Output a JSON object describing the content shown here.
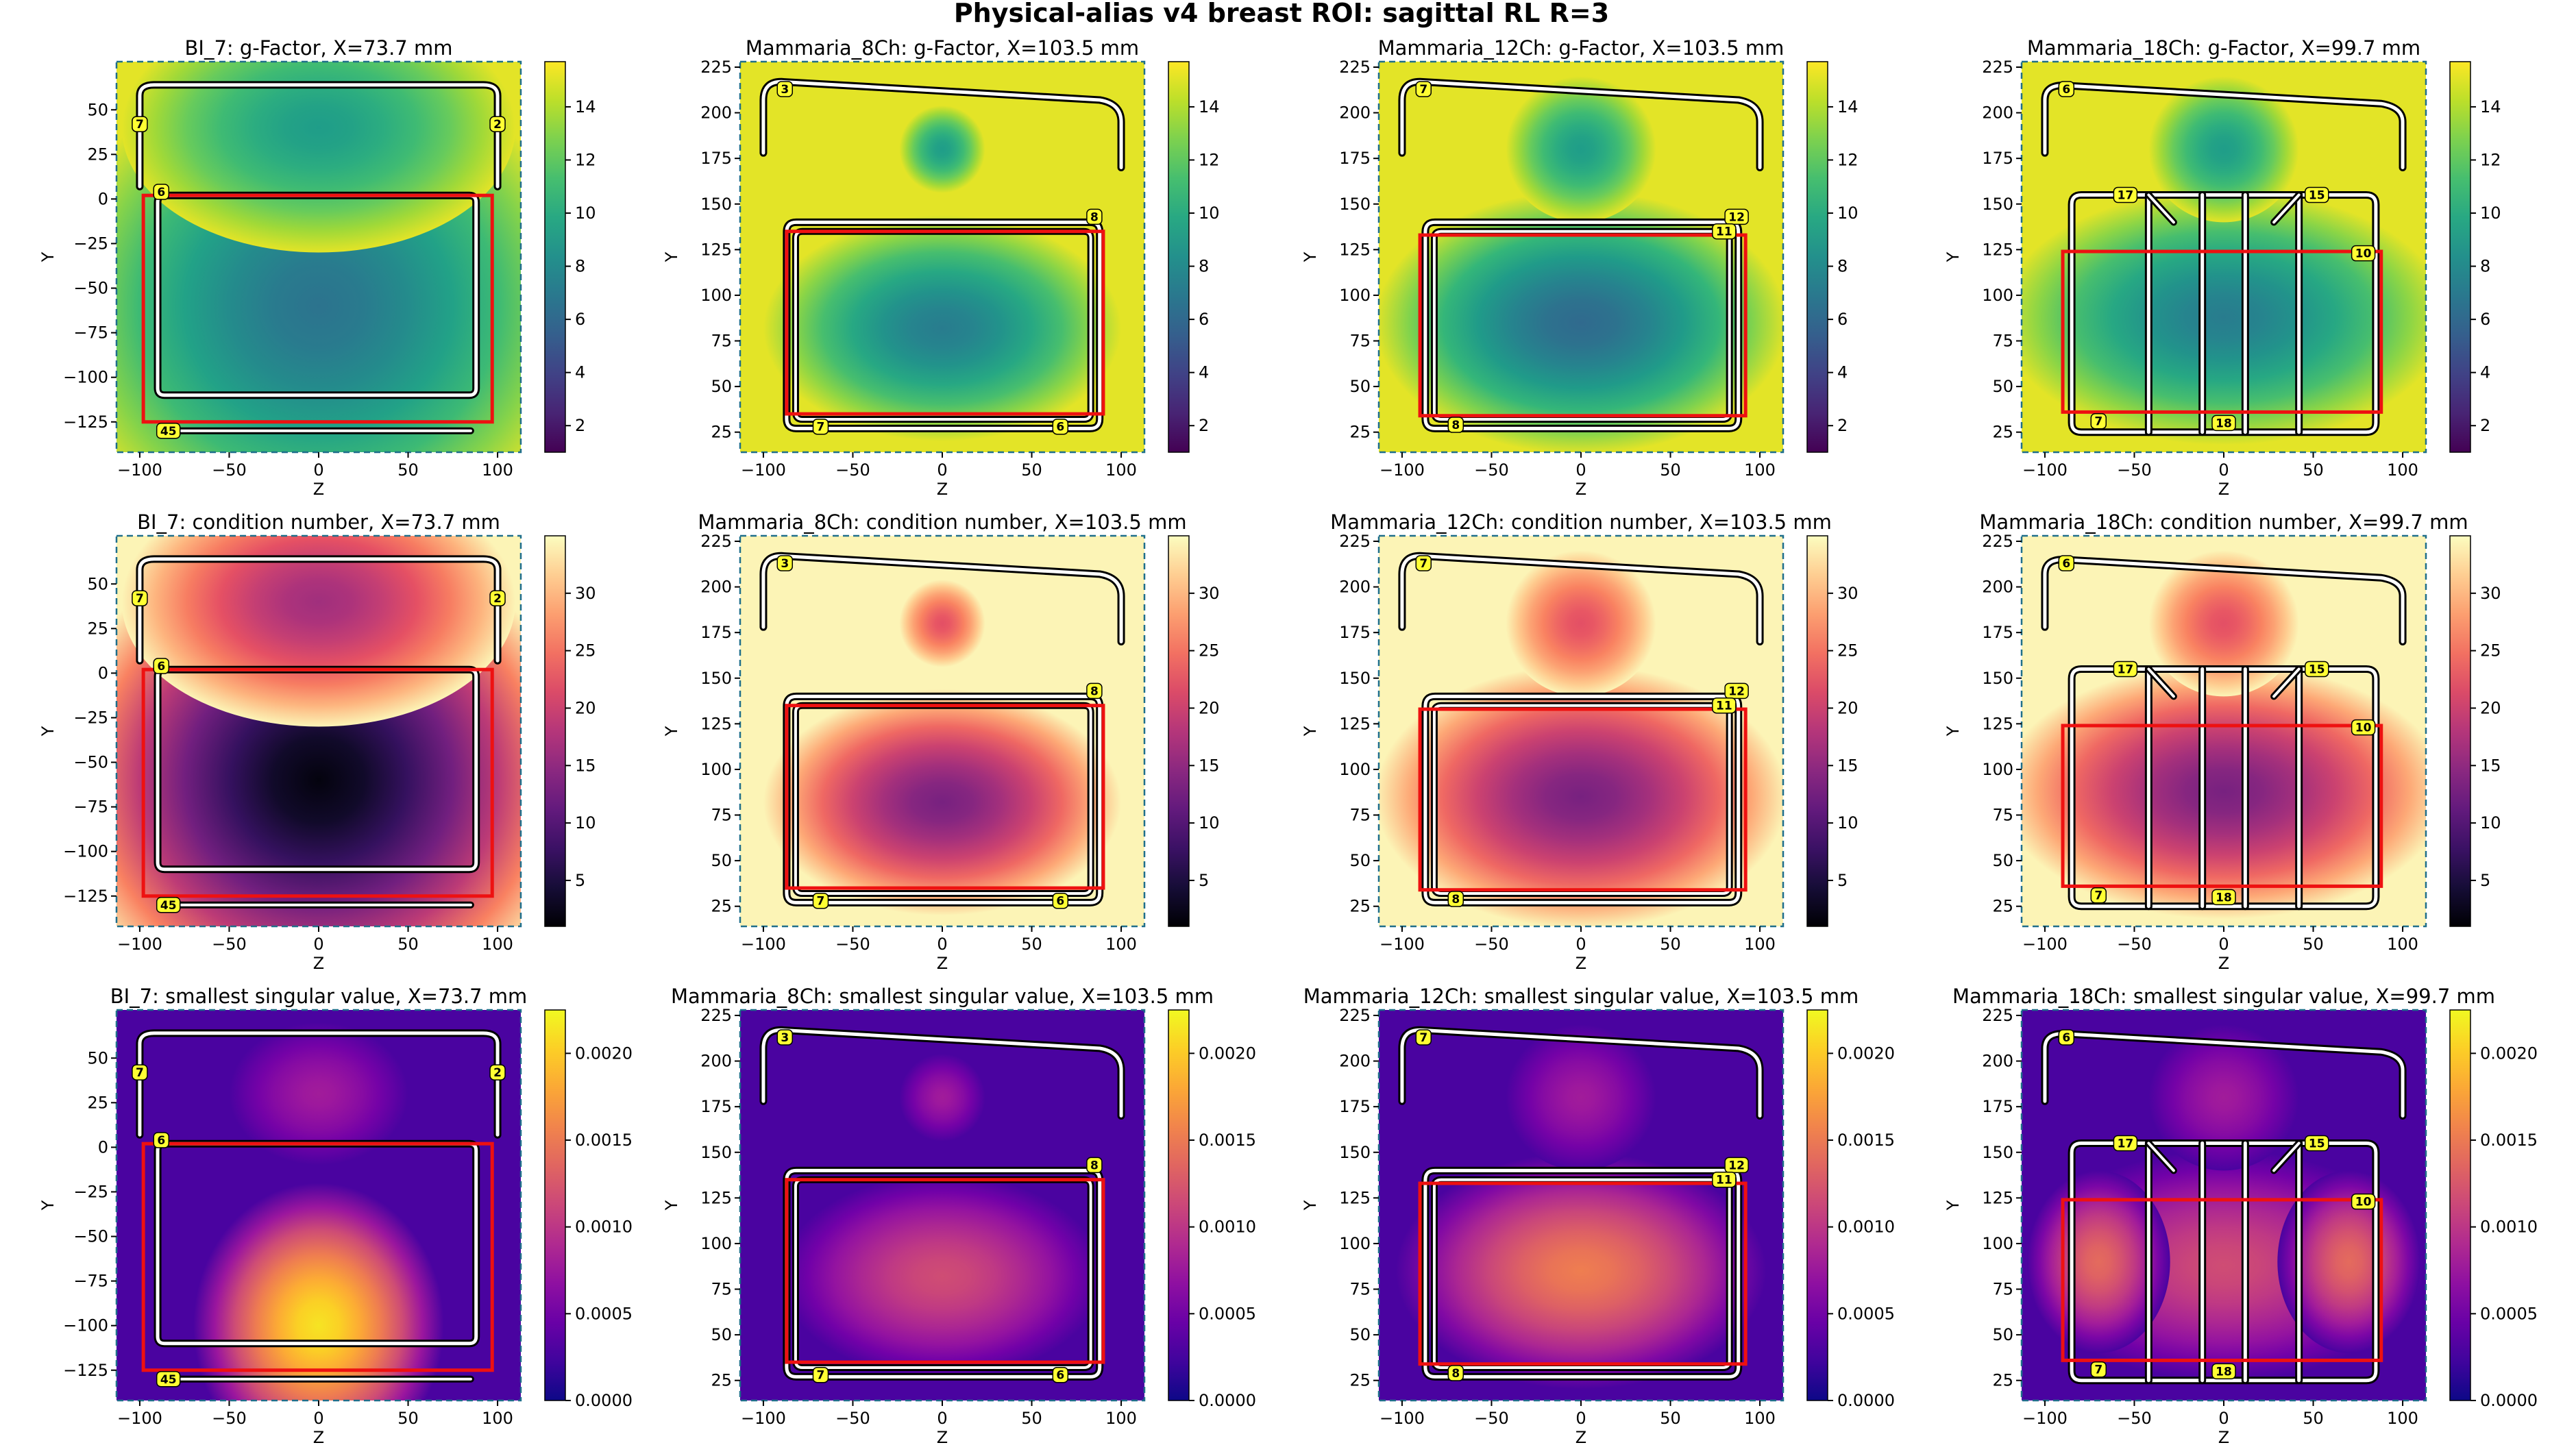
{
  "figure": {
    "title": "Physical-alias v4 breast ROI: sagittal RL R=3"
  },
  "colors": {
    "roi": "#ee1111",
    "label_bg": "#ffff33",
    "frame": "#1f6f8b"
  },
  "columns": [
    {
      "coil": "BI_7",
      "x_mm": "73.7",
      "geometry": "bi7",
      "xlim": [
        -113,
        113
      ],
      "ylim": [
        -142,
        77
      ],
      "xticks": [
        -100,
        -50,
        0,
        50,
        100
      ],
      "yticks": [
        -125,
        -100,
        -75,
        -50,
        -25,
        0,
        25,
        50
      ],
      "roi": {
        "z": [
          -98,
          97
        ],
        "y": [
          -125,
          2
        ]
      },
      "labels": [
        {
          "t": "7",
          "z": -100,
          "y": 42
        },
        {
          "t": "2",
          "z": 100,
          "y": 42
        },
        {
          "t": "6",
          "z": -88,
          "y": 4
        },
        {
          "t": "45",
          "z": -84,
          "y": -130
        }
      ]
    },
    {
      "coil": "Mammaria_8Ch",
      "x_mm": "103.5",
      "geometry": "m8",
      "xlim": [
        -113,
        113
      ],
      "ylim": [
        14,
        228
      ],
      "xticks": [
        -100,
        -50,
        0,
        50,
        100
      ],
      "yticks": [
        25,
        50,
        75,
        100,
        125,
        150,
        175,
        200,
        225
      ],
      "roi": {
        "z": [
          -87,
          90
        ],
        "y": [
          35,
          135
        ]
      },
      "labels": [
        {
          "t": "3",
          "z": -88,
          "y": 213
        },
        {
          "t": "8",
          "z": 85,
          "y": 143
        },
        {
          "t": "7",
          "z": -68,
          "y": 28
        },
        {
          "t": "6",
          "z": 66,
          "y": 28
        }
      ]
    },
    {
      "coil": "Mammaria_12Ch",
      "x_mm": "103.5",
      "geometry": "m12",
      "xlim": [
        -113,
        113
      ],
      "ylim": [
        14,
        228
      ],
      "xticks": [
        -100,
        -50,
        0,
        50,
        100
      ],
      "yticks": [
        25,
        50,
        75,
        100,
        125,
        150,
        175,
        200,
        225
      ],
      "roi": {
        "z": [
          -90,
          92
        ],
        "y": [
          34,
          133
        ]
      },
      "labels": [
        {
          "t": "7",
          "z": -88,
          "y": 213
        },
        {
          "t": "12",
          "z": 87,
          "y": 143
        },
        {
          "t": "11",
          "z": 80,
          "y": 135
        },
        {
          "t": "8",
          "z": -70,
          "y": 29
        }
      ]
    },
    {
      "coil": "Mammaria_18Ch",
      "x_mm": "99.7",
      "geometry": "m18",
      "xlim": [
        -113,
        113
      ],
      "ylim": [
        14,
        228
      ],
      "xticks": [
        -100,
        -50,
        0,
        50,
        100
      ],
      "yticks": [
        25,
        50,
        75,
        100,
        125,
        150,
        175,
        200,
        225
      ],
      "roi": {
        "z": [
          -90,
          88
        ],
        "y": [
          36,
          124
        ]
      },
      "labels": [
        {
          "t": "6",
          "z": -88,
          "y": 213
        },
        {
          "t": "17",
          "z": -55,
          "y": 155
        },
        {
          "t": "15",
          "z": 52,
          "y": 155
        },
        {
          "t": "10",
          "z": 78,
          "y": 123
        },
        {
          "t": "7",
          "z": -70,
          "y": 31
        },
        {
          "t": "18",
          "z": 0,
          "y": 30
        }
      ]
    }
  ],
  "metrics": [
    {
      "key": "gf",
      "title_suffix": "g-Factor",
      "colormap": "viridis",
      "colorbar": {
        "ticks": [
          "2",
          "4",
          "6",
          "8",
          "10",
          "12",
          "14"
        ],
        "tick_values": [
          2,
          4,
          6,
          8,
          10,
          12,
          14
        ],
        "range": [
          1,
          15.7
        ]
      }
    },
    {
      "key": "cond",
      "title_suffix": "condition number",
      "colormap": "magma",
      "colorbar": {
        "ticks": [
          "5",
          "10",
          "15",
          "20",
          "25",
          "30"
        ],
        "tick_values": [
          5,
          10,
          15,
          20,
          25,
          30
        ],
        "range": [
          1,
          35
        ]
      }
    },
    {
      "key": "sv",
      "title_suffix": "smallest singular value",
      "colormap": "plasma",
      "colorbar": {
        "ticks": [
          "0.0000",
          "0.0005",
          "0.0010",
          "0.0015",
          "0.0020"
        ],
        "tick_values": [
          0,
          0.0005,
          0.001,
          0.0015,
          0.002
        ],
        "range": [
          0,
          0.00225
        ]
      }
    }
  ],
  "axis_labels": {
    "x": "Z",
    "y": "Y"
  },
  "chart_data": [
    {
      "type": "heatmap",
      "title": "BI_7: g-Factor, X=73.7 mm",
      "xlabel": "Z",
      "ylabel": "Y",
      "xlim": [
        -113,
        113
      ],
      "ylim": [
        -142,
        77
      ],
      "colorbar_range": [
        1,
        15.7
      ],
      "colormap": "viridis",
      "roi": {
        "z": [
          -98,
          97
        ],
        "y": [
          -125,
          2
        ]
      }
    },
    {
      "type": "heatmap",
      "title": "Mammaria_8Ch: g-Factor, X=103.5 mm",
      "xlabel": "Z",
      "ylabel": "Y",
      "xlim": [
        -113,
        113
      ],
      "ylim": [
        14,
        228
      ],
      "colorbar_range": [
        1,
        15.7
      ],
      "colormap": "viridis",
      "roi": {
        "z": [
          -87,
          90
        ],
        "y": [
          35,
          135
        ]
      }
    },
    {
      "type": "heatmap",
      "title": "Mammaria_12Ch: g-Factor, X=103.5 mm",
      "xlabel": "Z",
      "ylabel": "Y",
      "xlim": [
        -113,
        113
      ],
      "ylim": [
        14,
        228
      ],
      "colorbar_range": [
        1,
        15.7
      ],
      "colormap": "viridis",
      "roi": {
        "z": [
          -90,
          92
        ],
        "y": [
          34,
          133
        ]
      }
    },
    {
      "type": "heatmap",
      "title": "Mammaria_18Ch: g-Factor, X=99.7 mm",
      "xlabel": "Z",
      "ylabel": "Y",
      "xlim": [
        -113,
        113
      ],
      "ylim": [
        14,
        228
      ],
      "colorbar_range": [
        1,
        15.7
      ],
      "colormap": "viridis",
      "roi": {
        "z": [
          -90,
          88
        ],
        "y": [
          36,
          124
        ]
      }
    },
    {
      "type": "heatmap",
      "title": "BI_7: condition number, X=73.7 mm",
      "xlabel": "Z",
      "ylabel": "Y",
      "xlim": [
        -113,
        113
      ],
      "ylim": [
        -142,
        77
      ],
      "colorbar_range": [
        1,
        35
      ],
      "colormap": "magma",
      "roi": {
        "z": [
          -98,
          97
        ],
        "y": [
          -125,
          2
        ]
      }
    },
    {
      "type": "heatmap",
      "title": "Mammaria_8Ch: condition number, X=103.5 mm",
      "xlabel": "Z",
      "ylabel": "Y",
      "xlim": [
        -113,
        113
      ],
      "ylim": [
        14,
        228
      ],
      "colorbar_range": [
        1,
        35
      ],
      "colormap": "magma",
      "roi": {
        "z": [
          -87,
          90
        ],
        "y": [
          35,
          135
        ]
      }
    },
    {
      "type": "heatmap",
      "title": "Mammaria_12Ch: condition number, X=103.5 mm",
      "xlabel": "Z",
      "ylabel": "Y",
      "xlim": [
        -113,
        113
      ],
      "ylim": [
        14,
        228
      ],
      "colorbar_range": [
        1,
        35
      ],
      "colormap": "magma",
      "roi": {
        "z": [
          -90,
          92
        ],
        "y": [
          34,
          133
        ]
      }
    },
    {
      "type": "heatmap",
      "title": "Mammaria_18Ch: condition number, X=99.7 mm",
      "xlabel": "Z",
      "ylabel": "Y",
      "xlim": [
        -113,
        113
      ],
      "ylim": [
        14,
        228
      ],
      "colorbar_range": [
        1,
        35
      ],
      "colormap": "magma",
      "roi": {
        "z": [
          -90,
          88
        ],
        "y": [
          36,
          124
        ]
      }
    },
    {
      "type": "heatmap",
      "title": "BI_7: smallest singular value, X=73.7 mm",
      "xlabel": "Z",
      "ylabel": "Y",
      "xlim": [
        -113,
        113
      ],
      "ylim": [
        -142,
        77
      ],
      "colorbar_range": [
        0,
        0.00225
      ],
      "colormap": "plasma",
      "roi": {
        "z": [
          -98,
          97
        ],
        "y": [
          -125,
          2
        ]
      }
    },
    {
      "type": "heatmap",
      "title": "Mammaria_8Ch: smallest singular value, X=103.5 mm",
      "xlabel": "Z",
      "ylabel": "Y",
      "xlim": [
        -113,
        113
      ],
      "ylim": [
        14,
        228
      ],
      "colorbar_range": [
        0,
        0.00225
      ],
      "colormap": "plasma",
      "roi": {
        "z": [
          -87,
          90
        ],
        "y": [
          35,
          135
        ]
      }
    },
    {
      "type": "heatmap",
      "title": "Mammaria_12Ch: smallest singular value, X=103.5 mm",
      "xlabel": "Z",
      "ylabel": "Y",
      "xlim": [
        -113,
        113
      ],
      "ylim": [
        14,
        228
      ],
      "colorbar_range": [
        0,
        0.00225
      ],
      "colormap": "plasma",
      "roi": {
        "z": [
          -90,
          92
        ],
        "y": [
          34,
          133
        ]
      }
    },
    {
      "type": "heatmap",
      "title": "Mammaria_18Ch: smallest singular value, X=99.7 mm",
      "xlabel": "Z",
      "ylabel": "Y",
      "xlim": [
        -113,
        113
      ],
      "ylim": [
        14,
        228
      ],
      "colorbar_range": [
        0,
        0.00225
      ],
      "colormap": "plasma",
      "roi": {
        "z": [
          -90,
          88
        ],
        "y": [
          36,
          124
        ]
      }
    }
  ]
}
